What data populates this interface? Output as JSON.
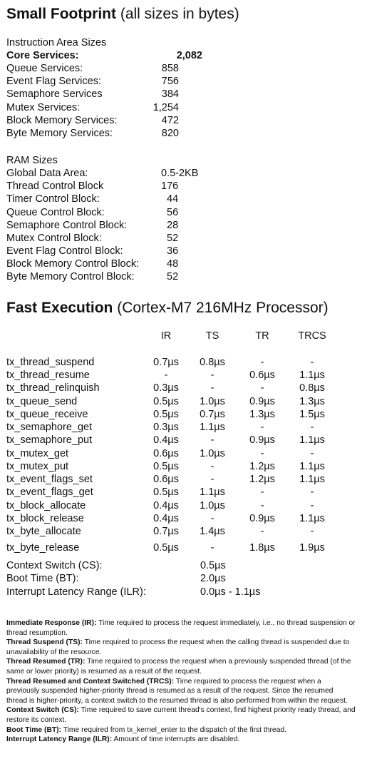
{
  "footprint": {
    "title_bold": "Small Footprint",
    "title_rest": " (all sizes in bytes)",
    "instruction_heading": "Instruction Area Sizes",
    "instruction_rows": [
      {
        "label": "Core Services:",
        "value": "2,082"
      },
      {
        "label": "Queue Services:",
        "value": "858"
      },
      {
        "label": "Event Flag Services:",
        "value": "756"
      },
      {
        "label": "Semaphore Services",
        "value": "384"
      },
      {
        "label": "Mutex Services:",
        "value": "1,254"
      },
      {
        "label": "Block Memory Services:",
        "value": "472"
      },
      {
        "label": "Byte Memory Services:",
        "value": "820"
      }
    ],
    "ram_heading": "RAM Sizes",
    "ram_rows": [
      {
        "label": "Global Data Area:",
        "value": "0.5-2KB"
      },
      {
        "label": "Thread Control Block",
        "value": "176"
      },
      {
        "label": "Timer Control Block:",
        "value": "44"
      },
      {
        "label": "Queue Control Block:",
        "value": "56"
      },
      {
        "label": "Semaphore Control Block:",
        "value": "28"
      },
      {
        "label": "Mutex Control Block:",
        "value": "52"
      },
      {
        "label": "Event Flag Control Block:",
        "value": "36"
      },
      {
        "label": "Block Memory Control Block:",
        "value": "48"
      },
      {
        "label": "Byte Memory Control Block:",
        "value": "52"
      }
    ]
  },
  "execution": {
    "title_bold": "Fast Execution",
    "title_rest": " (Cortex-M7 216MHz Processor)",
    "columns": [
      "IR",
      "TS",
      "TR",
      "TRCS"
    ],
    "rows": [
      {
        "fn": "tx_thread_suspend",
        "ir": "0.7µs",
        "ts": "0.8µs",
        "tr": "-",
        "trcs": "-"
      },
      {
        "fn": "tx_thread_resume",
        "ir": "-",
        "ts": "-",
        "tr": "0.6µs",
        "trcs": "1.1µs"
      },
      {
        "fn": "tx_thread_relinquish",
        "ir": "0.3µs",
        "ts": "-",
        "tr": "-",
        "trcs": "0.8µs"
      },
      {
        "fn": "tx_queue_send",
        "ir": "0.5µs",
        "ts": "1.0µs",
        "tr": "0.9µs",
        "trcs": "1.3µs"
      },
      {
        "fn": "tx_queue_receive",
        "ir": "0.5µs",
        "ts": "0.7µs",
        "tr": "1.3µs",
        "trcs": "1.5µs"
      },
      {
        "fn": "tx_semaphore_get",
        "ir": "0.3µs",
        "ts": "1.1µs",
        "tr": "-",
        "trcs": "-"
      },
      {
        "fn": "tx_semaphore_put",
        "ir": "0.4µs",
        "ts": "-",
        "tr": "0.9µs",
        "trcs": "1.1µs"
      },
      {
        "fn": "tx_mutex_get",
        "ir": "0.6µs",
        "ts": "1.0µs",
        "tr": "-",
        "trcs": "-"
      },
      {
        "fn": "tx_mutex_put",
        "ir": "0.5µs",
        "ts": "-",
        "tr": "1.2µs",
        "trcs": "1.1µs"
      },
      {
        "fn": "tx_event_flags_set",
        "ir": "0.6µs",
        "ts": "-",
        "tr": "1.2µs",
        "trcs": "1.1µs"
      },
      {
        "fn": "tx_event_flags_get",
        "ir": "0.5µs",
        "ts": "1.1µs",
        "tr": "-",
        "trcs": "-"
      },
      {
        "fn": "tx_block_allocate",
        "ir": "0.4µs",
        "ts": "1.0µs",
        "tr": "-",
        "trcs": "-"
      },
      {
        "fn": "tx_block_release",
        "ir": "0.4µs",
        "ts": "-",
        "tr": "0.9µs",
        "trcs": "1.1µs"
      },
      {
        "fn": "tx_byte_allocate",
        "ir": "0.7µs",
        "ts": "1.4µs",
        "tr": "-",
        "trcs": "-"
      },
      {
        "fn": "tx_byte_release",
        "ir": "0.5µs",
        "ts": "-",
        "tr": "1.8µs",
        "trcs": "1.9µs"
      }
    ],
    "summary": [
      {
        "label": "Context Switch (CS):",
        "value": "0.5µs"
      },
      {
        "label": "Boot Time (BT):",
        "value": "2.0µs"
      },
      {
        "label": "Interrupt Latency Range (ILR):",
        "value": "0.0µs - 1.1µs"
      }
    ]
  },
  "notes": [
    {
      "term": "Immediate Response (IR):",
      "text": " Time required to process the request immediately, i.e., no thread suspension or thread resumption."
    },
    {
      "term": "Thread Suspend (TS):",
      "text": " Time required to process the request when the calling thread is suspended due to unavailability of the resource."
    },
    {
      "term": "Thread Resumed (TR):",
      "text": " Time required to process the request when a previously suspended thread (of the same or lower priority) is resumed as a result of the request."
    },
    {
      "term": "Thread Resumed and Context Switched (TRCS):",
      "text": " Time required to process the request when a previously suspended higher-priority thread is resumed as a result of the request. Since the resumed thread is higher-priority, a context switch to the resumed thread is also performed from within the request."
    },
    {
      "term": "Context Switch (CS):",
      "text": "  Time required to save current thread's context, find highest priority ready thread, and restore its context."
    },
    {
      "term": "Boot Time (BT):",
      "text": " Time required from tx_kernel_enter to the dispatch of the first thread."
    },
    {
      "term": "Interrupt Latency Range (ILR):",
      "text": " Amount of time interrupts are disabled."
    }
  ]
}
